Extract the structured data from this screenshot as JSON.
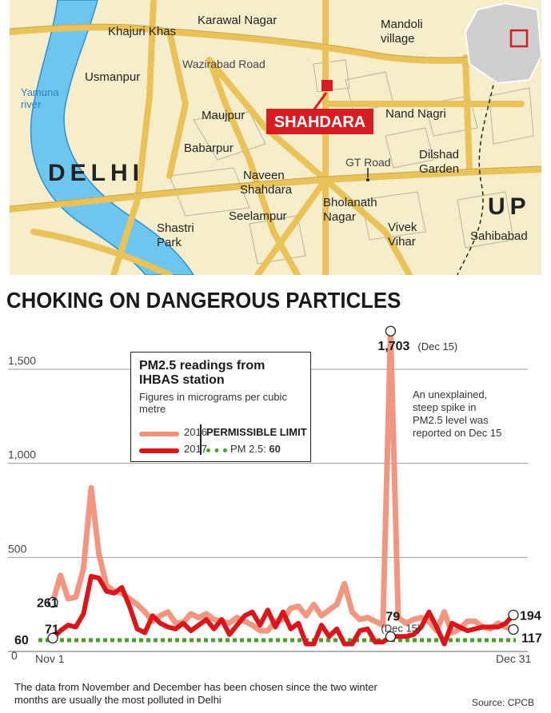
{
  "map": {
    "places": [
      {
        "id": "khajuri-khas",
        "name": "Khajuri Khas"
      },
      {
        "id": "karawal-nagar",
        "name": "Karawal Nagar"
      },
      {
        "id": "mandoli-village",
        "name": "Mandoli village"
      },
      {
        "id": "usmanpur",
        "name": "Usmanpur"
      },
      {
        "id": "maujpur",
        "name": "Maujpur"
      },
      {
        "id": "nand-nagri",
        "name": "Nand Nagri"
      },
      {
        "id": "babarpur",
        "name": "Babarpur"
      },
      {
        "id": "dilshad-garden",
        "name": "Dilshad Garden"
      },
      {
        "id": "naveen-shahdara",
        "name": "Naveen Shahdara"
      },
      {
        "id": "bholanath-nagar",
        "name": "Bholanath Nagar"
      },
      {
        "id": "seelampur",
        "name": "Seelampur"
      },
      {
        "id": "vivek-vihar",
        "name": "Vivek Vihar"
      },
      {
        "id": "shastri-park",
        "name": "Shastri Park"
      },
      {
        "id": "sahibabad",
        "name": "Sahibabad"
      }
    ],
    "roads": {
      "wazirabad": "Wazirabad Road",
      "gt": "GT Road"
    },
    "river": "Yamuna river",
    "region_delhi": "DELHI",
    "region_up": "UP",
    "highlight": "SHAHDARA",
    "colors": {
      "land": "#f6edcb",
      "road": "#e9c25a",
      "river": "#6ec6ef",
      "highlight": "#d41e24"
    }
  },
  "headline": "CHOKING ON DANGEROUS PARTICLES",
  "legend": {
    "title": "PM2.5 readings from IHBAS station",
    "subtitle": "Figures in micrograms per cubic metre",
    "series_2016": "2016",
    "series_2017": "2017",
    "limit_header": "PERMISSIBLE LIMIT",
    "limit_label": "PM 2.5:",
    "limit_value": "60"
  },
  "annotations": {
    "peak": "1,703",
    "peak_date": "(Dec 15)",
    "dec15_value": "79",
    "dec15_date": "(Dec 15)",
    "start_2016": "261",
    "start_2017": "71",
    "end_2017": "194",
    "end_2016": "117",
    "limit_marker": "60",
    "note": "An unexplained, steep spike in PM2.5 level was reported on Dec 15"
  },
  "footnote": "The data from November and December has been chosen since the two winter months are usually the most polluted in Delhi",
  "source": "Source: CPCB",
  "chart_data": {
    "type": "line",
    "title": "CHOKING ON DANGEROUS PARTICLES",
    "xlabel": "",
    "ylabel": "",
    "x_range": [
      "Nov 1",
      "Dec 31"
    ],
    "xticks": [
      "Nov 1",
      "Dec 31"
    ],
    "yticks": [
      0,
      500,
      1000,
      1500
    ],
    "ytick_labels": [
      "0",
      "500",
      "1,000",
      "1,500"
    ],
    "ylim": [
      0,
      1800
    ],
    "grid": "horizontal",
    "legend_position": "top-left",
    "series": [
      {
        "name": "2016",
        "color": "#f0907a",
        "values": [
          261,
          405,
          280,
          290,
          440,
          870,
          520,
          350,
          320,
          310,
          280,
          250,
          210,
          160,
          190,
          210,
          150,
          155,
          200,
          180,
          200,
          170,
          160,
          150,
          180,
          160,
          140,
          110,
          110,
          160,
          170,
          230,
          240,
          190,
          250,
          190,
          220,
          250,
          360,
          210,
          170,
          180,
          160,
          140,
          1703,
          180,
          150,
          170,
          180,
          160,
          110,
          210,
          100,
          120,
          160,
          160,
          130,
          120,
          150,
          130,
          117
        ]
      },
      {
        "name": "2017",
        "color": "#d8161c",
        "values": [
          71,
          110,
          140,
          130,
          200,
          400,
          390,
          320,
          310,
          340,
          240,
          120,
          100,
          190,
          150,
          130,
          120,
          150,
          110,
          140,
          170,
          120,
          170,
          90,
          140,
          190,
          210,
          140,
          220,
          130,
          210,
          120,
          150,
          40,
          40,
          140,
          80,
          120,
          40,
          40,
          110,
          120,
          50,
          50,
          79,
          80,
          80,
          90,
          130,
          210,
          130,
          40,
          150,
          130,
          110,
          120,
          130,
          130,
          130,
          150,
          194
        ]
      },
      {
        "name": "PERMISSIBLE LIMIT",
        "color": "#4aa02c",
        "values": "constant 60",
        "constant": 60
      }
    ],
    "highlights": [
      {
        "label": "1,703 (Dec 15)",
        "series": "2016",
        "x": "Dec 15",
        "y": 1703
      },
      {
        "label": "79 (Dec 15)",
        "series": "2017",
        "x": "Dec 15",
        "y": 79
      }
    ]
  }
}
